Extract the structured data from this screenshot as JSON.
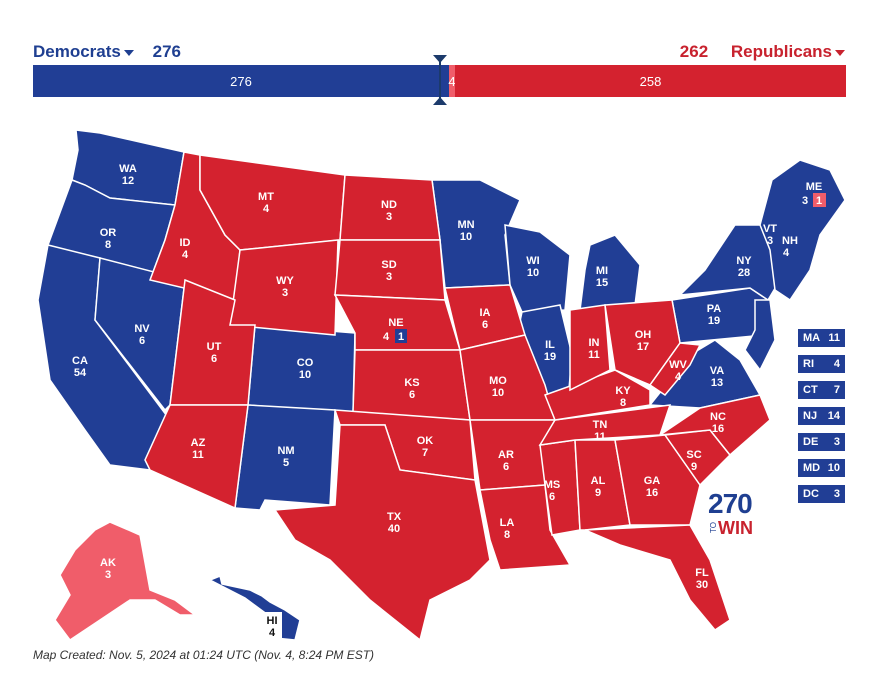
{
  "header": {
    "dem_label": "Democrats",
    "dem_total": "276",
    "rep_label": "Republicans",
    "rep_total": "262"
  },
  "bar": {
    "dem": "276",
    "lean": "4",
    "rep": "258"
  },
  "colors": {
    "dem": "#213e95",
    "rep": "#d4222f",
    "rep_lean": "#f05d6a"
  },
  "states": {
    "WA": "12",
    "OR": "8",
    "CA": "54",
    "NV": "6",
    "ID": "4",
    "MT": "4",
    "WY": "3",
    "UT": "6",
    "AZ": "11",
    "CO": "10",
    "NM": "5",
    "ND": "3",
    "SD": "3",
    "NE": "4",
    "NE_extra": "1",
    "KS": "6",
    "OK": "7",
    "TX": "40",
    "MN": "10",
    "IA": "6",
    "MO": "10",
    "AR": "6",
    "LA": "8",
    "WI": "10",
    "IL": "19",
    "MI": "15",
    "IN": "11",
    "OH": "17",
    "KY": "8",
    "TN": "11",
    "MS": "6",
    "AL": "9",
    "GA": "16",
    "FL": "30",
    "SC": "9",
    "NC": "16",
    "VA": "13",
    "WV": "4",
    "PA": "19",
    "NY": "28",
    "VT": "3",
    "NH": "4",
    "ME": "3",
    "ME_extra": "1",
    "AK": "3",
    "HI": "4"
  },
  "small_states": [
    {
      "name": "MA",
      "ev": "11"
    },
    {
      "name": "RI",
      "ev": "4"
    },
    {
      "name": "CT",
      "ev": "7"
    },
    {
      "name": "NJ",
      "ev": "14"
    },
    {
      "name": "DE",
      "ev": "3"
    },
    {
      "name": "MD",
      "ev": "10"
    },
    {
      "name": "DC",
      "ev": "3"
    }
  ],
  "logo": {
    "number": "270",
    "to": "TO",
    "win": "WIN"
  },
  "footer": "Map Created: Nov. 5, 2024 at 01:24 UTC (Nov. 4, 8:24 PM EST)"
}
